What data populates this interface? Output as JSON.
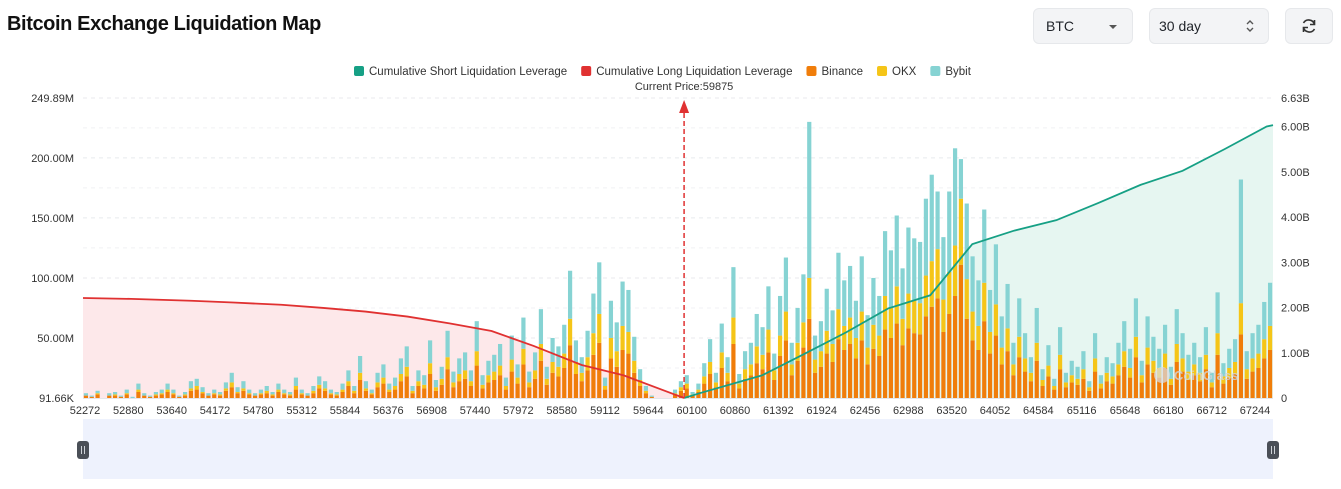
{
  "header": {
    "title": "Bitcoin Exchange Liquidation Map",
    "coin_select": "BTC",
    "range_select": "30 day",
    "refresh_icon": "refresh-icon"
  },
  "colors": {
    "short_line": "#16a085",
    "short_fill": "#e6f6f1",
    "long_line": "#e03131",
    "long_fill": "#fde8ea",
    "binance": "#f07d0a",
    "okx": "#f5c518",
    "bybit": "#86d3d3",
    "current_price_marker": "#e03131"
  },
  "chart_data": {
    "type": "bar",
    "legend_position": "top-center",
    "current_price_label": "Current Price:59875",
    "current_price": 59875,
    "legend": [
      {
        "name": "Cumulative Short Liquidation Leverage",
        "color": "#16a085"
      },
      {
        "name": "Cumulative Long Liquidation Leverage",
        "color": "#e03131"
      },
      {
        "name": "Binance",
        "color": "#f07d0a"
      },
      {
        "name": "OKX",
        "color": "#f5c518"
      },
      {
        "name": "Bybit",
        "color": "#86d3d3"
      }
    ],
    "x_ticks": [
      "52272",
      "52880",
      "53640",
      "54172",
      "54780",
      "55312",
      "55844",
      "56376",
      "56908",
      "57440",
      "57972",
      "58580",
      "59112",
      "59644",
      "60100",
      "60860",
      "61392",
      "61924",
      "62456",
      "62988",
      "63520",
      "64052",
      "64584",
      "65116",
      "65648",
      "66180",
      "66712",
      "67244"
    ],
    "x_range": [
      52272,
      67324
    ],
    "y_left": {
      "ticks": [
        "91.66K",
        "50.00M",
        "100.00M",
        "150.00M",
        "200.00M",
        "249.89M"
      ],
      "range": [
        0,
        249.89
      ],
      "unit": "M"
    },
    "y_right": {
      "ticks": [
        "0",
        "1.00B",
        "2.00B",
        "3.00B",
        "4.00B",
        "5.00B",
        "6.00B",
        "6.63B"
      ],
      "range": [
        0,
        6.63
      ],
      "unit": "B"
    },
    "grid": true,
    "watermark": "CoinGlass",
    "long_cumulative": {
      "x": [
        52272,
        52880,
        53640,
        54172,
        54780,
        55312,
        55844,
        56376,
        56908,
        57440,
        57972,
        58580,
        59112,
        59644,
        59875
      ],
      "y": [
        2.21,
        2.19,
        2.15,
        2.11,
        2.06,
        1.99,
        1.91,
        1.8,
        1.65,
        1.48,
        1.15,
        0.73,
        0.5,
        0.15,
        0.0
      ]
    },
    "short_cumulative": {
      "x": [
        59875,
        60100,
        60860,
        61392,
        61924,
        62456,
        62988,
        63520,
        64052,
        64584,
        65116,
        65648,
        66180,
        66712,
        67244,
        67324
      ],
      "y": [
        0.0,
        0.12,
        0.5,
        0.97,
        1.45,
        1.98,
        2.27,
        3.4,
        3.7,
        3.93,
        4.31,
        4.71,
        5.02,
        5.5,
        6.0,
        6.03
      ]
    },
    "stacked_bars_M": {
      "interval": 76,
      "start": 52272,
      "binance": [
        2,
        1,
        3,
        0,
        2,
        2,
        1,
        3,
        0,
        5,
        2,
        1,
        2,
        3,
        5,
        3,
        1,
        2,
        6,
        7,
        4,
        2,
        3,
        2,
        6,
        9,
        4,
        6,
        3,
        2,
        3,
        4,
        2,
        5,
        3,
        2,
        7,
        3,
        2,
        4,
        8,
        6,
        3,
        2,
        5,
        10,
        4,
        15,
        6,
        3,
        9,
        12,
        5,
        7,
        14,
        18,
        4,
        10,
        8,
        20,
        6,
        11,
        24,
        9,
        14,
        16,
        10,
        27,
        8,
        13,
        15,
        19,
        7,
        22,
        12,
        28,
        9,
        16,
        31,
        11,
        21,
        18,
        25,
        44,
        20,
        14,
        23,
        36,
        46,
        7,
        33,
        26,
        40,
        37,
        21,
        10,
        4,
        1,
        0,
        0,
        0,
        3,
        6,
        8,
        2,
        5,
        12,
        20,
        9,
        25,
        14,
        45,
        8,
        16,
        19,
        29,
        24,
        38,
        15,
        35,
        48,
        19,
        31,
        42,
        66,
        21,
        26,
        37,
        30,
        49,
        40,
        45,
        33,
        48,
        28,
        41,
        35,
        57,
        50,
        62,
        44,
        58,
        54,
        53,
        68,
        76,
        83,
        55,
        70,
        85,
        111,
        66,
        48,
        40,
        64,
        37,
        52,
        28,
        39,
        19,
        34,
        22,
        14,
        31,
        10,
        18,
        7,
        24,
        9,
        13,
        11,
        16,
        6,
        22,
        8,
        14,
        12,
        19,
        26,
        17,
        34,
        13,
        28,
        21,
        17,
        25,
        11,
        30,
        22,
        15,
        19,
        14,
        24,
        9,
        36,
        12,
        17,
        20,
        53,
        16,
        22,
        25,
        33,
        40
      ],
      "okx": [
        0,
        0,
        1,
        0,
        0,
        1,
        0,
        1,
        0,
        2,
        0,
        0,
        1,
        1,
        2,
        1,
        0,
        1,
        2,
        3,
        1,
        0,
        1,
        1,
        2,
        4,
        1,
        2,
        1,
        0,
        1,
        2,
        1,
        2,
        1,
        1,
        3,
        1,
        0,
        2,
        3,
        2,
        1,
        1,
        2,
        4,
        2,
        6,
        2,
        1,
        4,
        5,
        2,
        3,
        6,
        8,
        2,
        4,
        3,
        9,
        3,
        5,
        10,
        4,
        6,
        7,
        4,
        12,
        3,
        6,
        7,
        8,
        3,
        10,
        5,
        13,
        4,
        7,
        14,
        5,
        9,
        8,
        12,
        22,
        10,
        7,
        11,
        18,
        24,
        3,
        17,
        13,
        20,
        18,
        10,
        5,
        2,
        0,
        0,
        0,
        0,
        1,
        3,
        4,
        1,
        2,
        6,
        10,
        4,
        13,
        7,
        22,
        4,
        8,
        9,
        14,
        12,
        19,
        8,
        17,
        24,
        9,
        15,
        21,
        34,
        11,
        13,
        19,
        15,
        25,
        20,
        22,
        17,
        24,
        14,
        20,
        17,
        28,
        25,
        31,
        22,
        29,
        27,
        26,
        34,
        38,
        41,
        27,
        35,
        42,
        55,
        33,
        24,
        20,
        32,
        18,
        26,
        14,
        19,
        9,
        17,
        11,
        7,
        15,
        5,
        9,
        3,
        12,
        4,
        6,
        5,
        8,
        3,
        11,
        4,
        7,
        6,
        9,
        13,
        8,
        17,
        6,
        14,
        10,
        8,
        12,
        5,
        15,
        11,
        7,
        9,
        7,
        12,
        4,
        18,
        6,
        8,
        10,
        26,
        8,
        11,
        12,
        16,
        20
      ],
      "bybit": [
        2,
        1,
        2,
        0,
        2,
        2,
        1,
        3,
        1,
        5,
        2,
        1,
        2,
        3,
        5,
        3,
        1,
        2,
        6,
        6,
        4,
        2,
        3,
        2,
        5,
        8,
        4,
        6,
        3,
        2,
        3,
        4,
        2,
        5,
        3,
        2,
        7,
        3,
        2,
        4,
        7,
        6,
        3,
        2,
        5,
        9,
        4,
        14,
        6,
        3,
        8,
        11,
        5,
        7,
        13,
        17,
        4,
        9,
        8,
        19,
        6,
        10,
        22,
        9,
        13,
        15,
        9,
        25,
        8,
        12,
        14,
        18,
        7,
        20,
        11,
        26,
        9,
        15,
        29,
        10,
        20,
        17,
        24,
        40,
        18,
        13,
        22,
        33,
        43,
        7,
        31,
        24,
        37,
        35,
        20,
        9,
        4,
        1,
        0,
        0,
        0,
        3,
        5,
        7,
        2,
        5,
        11,
        19,
        8,
        24,
        13,
        42,
        8,
        15,
        18,
        27,
        23,
        36,
        14,
        33,
        45,
        18,
        29,
        40,
        130,
        20,
        25,
        35,
        28,
        47,
        38,
        43,
        31,
        46,
        27,
        39,
        33,
        54,
        48,
        59,
        42,
        55,
        52,
        51,
        64,
        72,
        48,
        52,
        67,
        81,
        33,
        63,
        46,
        38,
        61,
        35,
        50,
        26,
        37,
        18,
        32,
        21,
        13,
        29,
        9,
        17,
        6,
        23,
        8,
        12,
        10,
        15,
        5,
        21,
        7,
        13,
        11,
        18,
        25,
        16,
        32,
        12,
        26,
        20,
        16,
        24,
        10,
        29,
        21,
        14,
        18,
        13,
        23,
        8,
        34,
        11,
        16,
        19,
        103,
        15,
        21,
        24,
        31,
        36
      ]
    }
  }
}
